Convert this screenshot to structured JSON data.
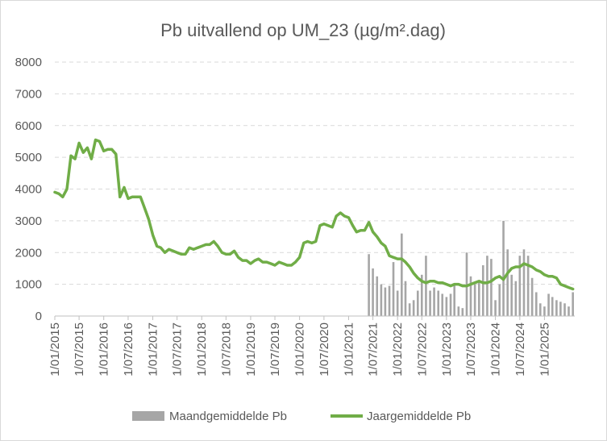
{
  "chart_data": {
    "type": "line",
    "title": "Pb uitvallend op UM_23 (µg/m².dag)",
    "xlabel": "",
    "ylabel": "",
    "ylim": [
      0,
      8000
    ],
    "yticks": [
      "0",
      "1000",
      "2000",
      "3000",
      "4000",
      "5000",
      "6000",
      "7000",
      "8000"
    ],
    "xticks": [
      "1/01/2015",
      "1/07/2015",
      "1/01/2016",
      "1/07/2016",
      "1/01/2017",
      "1/07/2017",
      "1/01/2018",
      "1/07/2018",
      "1/01/2019",
      "1/07/2019",
      "1/01/2020",
      "1/07/2020",
      "1/01/2021",
      "1/07/2021",
      "1/01/2022",
      "1/07/2022",
      "1/01/2023",
      "1/07/2023",
      "1/01/2024",
      "1/07/2024",
      "1/01/2025"
    ],
    "xrange": [
      "2015-01-01",
      "2025-08-15"
    ],
    "grid": "horizontal dashed",
    "legend_position": "bottom",
    "colors": {
      "monthly": "#a6a6a6",
      "annual": "#70ad47"
    },
    "series": [
      {
        "name": "Maandgemiddelde Pb",
        "kind": "bar",
        "x": [
          "2021-06-01",
          "2021-07-01",
          "2021-08-01",
          "2021-09-01",
          "2021-10-01",
          "2021-11-01",
          "2021-12-01",
          "2022-01-01",
          "2022-02-01",
          "2022-03-01",
          "2022-04-01",
          "2022-05-01",
          "2022-06-01",
          "2022-07-01",
          "2022-08-01",
          "2022-09-01",
          "2022-10-01",
          "2022-11-01",
          "2022-12-01",
          "2023-01-01",
          "2023-02-01",
          "2023-03-01",
          "2023-04-01",
          "2023-05-01",
          "2023-06-01",
          "2023-07-01",
          "2023-08-01",
          "2023-09-01",
          "2023-10-01",
          "2023-11-01",
          "2023-12-01",
          "2024-01-01",
          "2024-02-01",
          "2024-03-01",
          "2024-04-01",
          "2024-05-01",
          "2024-06-01",
          "2024-07-01",
          "2024-08-01",
          "2024-09-01",
          "2024-10-01",
          "2024-11-01",
          "2024-12-01",
          "2025-01-01",
          "2025-02-01",
          "2025-03-01",
          "2025-04-01",
          "2025-05-01",
          "2025-06-01",
          "2025-07-01",
          "2025-08-01"
        ],
        "values": [
          1950,
          1500,
          1250,
          1000,
          900,
          950,
          1700,
          800,
          2600,
          1100,
          400,
          500,
          800,
          1300,
          1900,
          800,
          900,
          800,
          700,
          600,
          700,
          1000,
          300,
          250,
          2000,
          1250,
          1000,
          1100,
          1600,
          1900,
          1800,
          500,
          1000,
          3000,
          2100,
          1300,
          1100,
          1900,
          2100,
          1900,
          1200,
          750,
          400,
          300,
          700,
          600,
          500,
          450,
          400,
          300,
          750
        ]
      },
      {
        "name": "Jaargemiddelde Pb",
        "kind": "line",
        "x": [
          "2015-01-01",
          "2015-02-01",
          "2015-03-01",
          "2015-04-01",
          "2015-05-01",
          "2015-06-01",
          "2015-07-01",
          "2015-08-01",
          "2015-09-01",
          "2015-10-01",
          "2015-11-01",
          "2015-12-01",
          "2016-01-01",
          "2016-02-01",
          "2016-03-01",
          "2016-04-01",
          "2016-05-01",
          "2016-06-01",
          "2016-07-01",
          "2016-08-01",
          "2016-09-01",
          "2016-10-01",
          "2016-11-01",
          "2016-12-01",
          "2017-01-01",
          "2017-02-01",
          "2017-03-01",
          "2017-04-01",
          "2017-05-01",
          "2017-06-01",
          "2017-07-01",
          "2017-08-01",
          "2017-09-01",
          "2017-10-01",
          "2017-11-01",
          "2017-12-01",
          "2018-01-01",
          "2018-02-01",
          "2018-03-01",
          "2018-04-01",
          "2018-05-01",
          "2018-06-01",
          "2018-07-01",
          "2018-08-01",
          "2018-09-01",
          "2018-10-01",
          "2018-11-01",
          "2018-12-01",
          "2019-01-01",
          "2019-02-01",
          "2019-03-01",
          "2019-04-01",
          "2019-05-01",
          "2019-06-01",
          "2019-07-01",
          "2019-08-01",
          "2019-09-01",
          "2019-10-01",
          "2019-11-01",
          "2019-12-01",
          "2020-01-01",
          "2020-02-01",
          "2020-03-01",
          "2020-04-01",
          "2020-05-01",
          "2020-06-01",
          "2020-07-01",
          "2020-08-01",
          "2020-09-01",
          "2020-10-01",
          "2020-11-01",
          "2020-12-01",
          "2021-01-01",
          "2021-02-01",
          "2021-03-01",
          "2021-04-01",
          "2021-05-01",
          "2021-06-01",
          "2021-07-01",
          "2021-08-01",
          "2021-09-01",
          "2021-10-01",
          "2021-11-01",
          "2021-12-01",
          "2022-01-01",
          "2022-02-01",
          "2022-03-01",
          "2022-04-01",
          "2022-05-01",
          "2022-06-01",
          "2022-07-01",
          "2022-08-01",
          "2022-09-01",
          "2022-10-01",
          "2022-11-01",
          "2022-12-01",
          "2023-01-01",
          "2023-02-01",
          "2023-03-01",
          "2023-04-01",
          "2023-05-01",
          "2023-06-01",
          "2023-07-01",
          "2023-08-01",
          "2023-09-01",
          "2023-10-01",
          "2023-11-01",
          "2023-12-01",
          "2024-01-01",
          "2024-02-01",
          "2024-03-01",
          "2024-04-01",
          "2024-05-01",
          "2024-06-01",
          "2024-07-01",
          "2024-08-01",
          "2024-09-01",
          "2024-10-01",
          "2024-11-01",
          "2024-12-01",
          "2025-01-01",
          "2025-02-01",
          "2025-03-01",
          "2025-04-01",
          "2025-05-01",
          "2025-06-01",
          "2025-07-01",
          "2025-08-01"
        ],
        "values": [
          3900,
          3850,
          3750,
          4000,
          5050,
          4950,
          5450,
          5150,
          5300,
          4950,
          5550,
          5500,
          5200,
          5250,
          5250,
          5100,
          3750,
          4050,
          3700,
          3750,
          3750,
          3750,
          3400,
          3050,
          2550,
          2200,
          2150,
          2000,
          2100,
          2050,
          2000,
          1950,
          1950,
          2150,
          2100,
          2150,
          2200,
          2250,
          2250,
          2350,
          2200,
          2000,
          1950,
          1950,
          2050,
          1850,
          1750,
          1750,
          1650,
          1750,
          1800,
          1700,
          1700,
          1650,
          1600,
          1700,
          1650,
          1600,
          1600,
          1700,
          1850,
          2300,
          2350,
          2300,
          2350,
          2850,
          2900,
          2850,
          2800,
          3150,
          3250,
          3150,
          3100,
          2850,
          2650,
          2700,
          2700,
          2950,
          2650,
          2500,
          2300,
          2200,
          1900,
          1850,
          1800,
          1800,
          1700,
          1550,
          1350,
          1200,
          1100,
          1050,
          1100,
          1100,
          1050,
          1050,
          1000,
          950,
          1000,
          1000,
          950,
          950,
          1000,
          1050,
          1100,
          1050,
          1050,
          1100,
          1200,
          1250,
          1150,
          1350,
          1500,
          1550,
          1550,
          1650,
          1600,
          1550,
          1450,
          1400,
          1300,
          1250,
          1250,
          1200,
          1000,
          950,
          900,
          850
        ]
      }
    ]
  }
}
